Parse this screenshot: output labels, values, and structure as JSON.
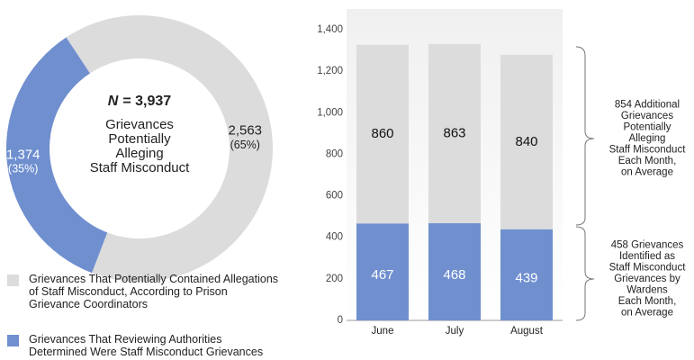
{
  "chart_data": [
    {
      "type": "pie",
      "categories": [
        "Grievances That Potentially Contained Allegations of Staff Misconduct, According to Prison Grievance Coordinators",
        "Grievances That Reviewing Authorities Determined Were Staff Misconduct Grievances"
      ],
      "values": [
        2563,
        1374
      ],
      "value_labels": [
        "2,563",
        "1,374"
      ],
      "percent_labels": [
        "(65%)",
        "(35%)"
      ],
      "colors": [
        "#dcdcdc",
        "#6f8fcf"
      ],
      "label_colors": [
        "#222222",
        "#ffffff"
      ],
      "n_symbol": "N",
      "n_value": "= 3,937",
      "center_lines": [
        "Grievances",
        "Potentially",
        "Alleging",
        "Staff Misconduct"
      ]
    },
    {
      "type": "bar",
      "stacked": true,
      "categories": [
        "June",
        "July",
        "August"
      ],
      "series": [
        {
          "color": "#6f8fcf",
          "label_color": "#ffffff",
          "values": [
            467,
            468,
            439
          ]
        },
        {
          "color": "#dcdcdc",
          "label_color": "#111111",
          "values": [
            860,
            863,
            840
          ]
        }
      ],
      "ylim": [
        0,
        1400
      ],
      "yticks": [
        0,
        200,
        400,
        600,
        800,
        {
          "value": 1000,
          "label": "1,000"
        },
        {
          "value": 1200,
          "label": "1,200"
        },
        {
          "value": 1400,
          "label": "1,400"
        }
      ],
      "annotations": [
        {
          "lines": [
            "854 Additional",
            "Grievances",
            "Potentially",
            "Alleging",
            "Staff Misconduct",
            "Each Month,",
            "on Average"
          ]
        },
        {
          "lines": [
            "458 Grievances",
            "Identified as",
            "Staff Misconduct",
            "Grievances by",
            "Wardens",
            "Each Month,",
            "on Average"
          ]
        }
      ]
    }
  ]
}
